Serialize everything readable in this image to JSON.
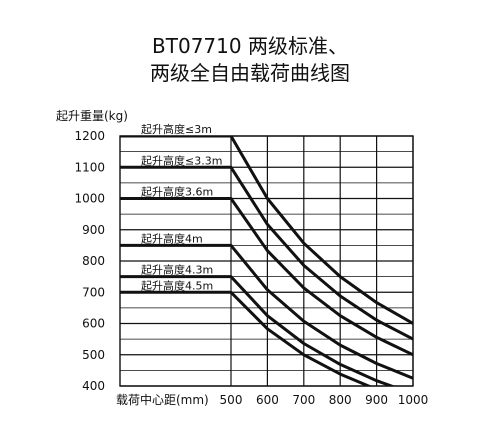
{
  "chart_data": {
    "type": "line",
    "title_line1": "BT07710 两级标准、",
    "title_line2": "两级全自由载荷曲线图",
    "ylabel": "起升重量(kg)",
    "xlabel": "载荷中心距(mm)",
    "xlim": [
      400,
      1000
    ],
    "ylim": [
      400,
      1200
    ],
    "x_ticks": [
      "500",
      "600",
      "700",
      "800",
      "900",
      "1000"
    ],
    "y_ticks": [
      "1200",
      "1100",
      "1000",
      "900",
      "800",
      "700",
      "600",
      "500",
      "400"
    ],
    "grid": true,
    "series": [
      {
        "name": "起升高度≤3m",
        "points": [
          [
            400,
            1200
          ],
          [
            500,
            1200
          ],
          [
            600,
            1000
          ],
          [
            700,
            857
          ],
          [
            800,
            750
          ],
          [
            900,
            667
          ],
          [
            1000,
            600
          ]
        ]
      },
      {
        "name": "起升高度≤3.3m",
        "points": [
          [
            400,
            1100
          ],
          [
            500,
            1100
          ],
          [
            600,
            917
          ],
          [
            700,
            786
          ],
          [
            800,
            688
          ],
          [
            900,
            611
          ],
          [
            1000,
            550
          ]
        ]
      },
      {
        "name": "起升高度3.6m",
        "points": [
          [
            400,
            1000
          ],
          [
            500,
            1000
          ],
          [
            600,
            833
          ],
          [
            700,
            714
          ],
          [
            800,
            625
          ],
          [
            900,
            556
          ],
          [
            1000,
            500
          ]
        ]
      },
      {
        "name": "起升高度4m",
        "points": [
          [
            400,
            850
          ],
          [
            500,
            850
          ],
          [
            600,
            708
          ],
          [
            700,
            607
          ],
          [
            800,
            531
          ],
          [
            900,
            472
          ],
          [
            1000,
            425
          ]
        ]
      },
      {
        "name": "起升高度4.3m",
        "points": [
          [
            400,
            750
          ],
          [
            500,
            750
          ],
          [
            600,
            625
          ],
          [
            700,
            536
          ],
          [
            800,
            469
          ],
          [
            900,
            417
          ],
          [
            1000,
            375
          ]
        ]
      },
      {
        "name": "起升高度4.5m",
        "points": [
          [
            400,
            700
          ],
          [
            500,
            700
          ],
          [
            600,
            583
          ],
          [
            700,
            500
          ],
          [
            800,
            438
          ],
          [
            900,
            389
          ],
          [
            1000,
            350
          ]
        ]
      }
    ]
  }
}
